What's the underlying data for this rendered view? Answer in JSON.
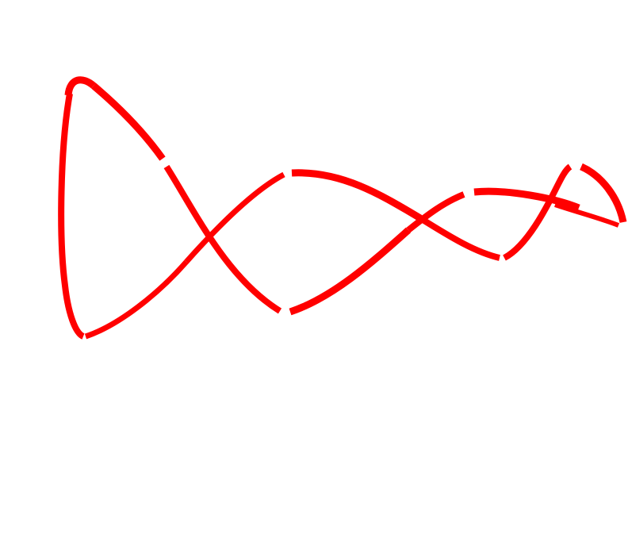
{
  "drawing": {
    "stroke_color": "#ff0000",
    "background_color": "#ffffff",
    "shape": "looping-red-curve"
  }
}
